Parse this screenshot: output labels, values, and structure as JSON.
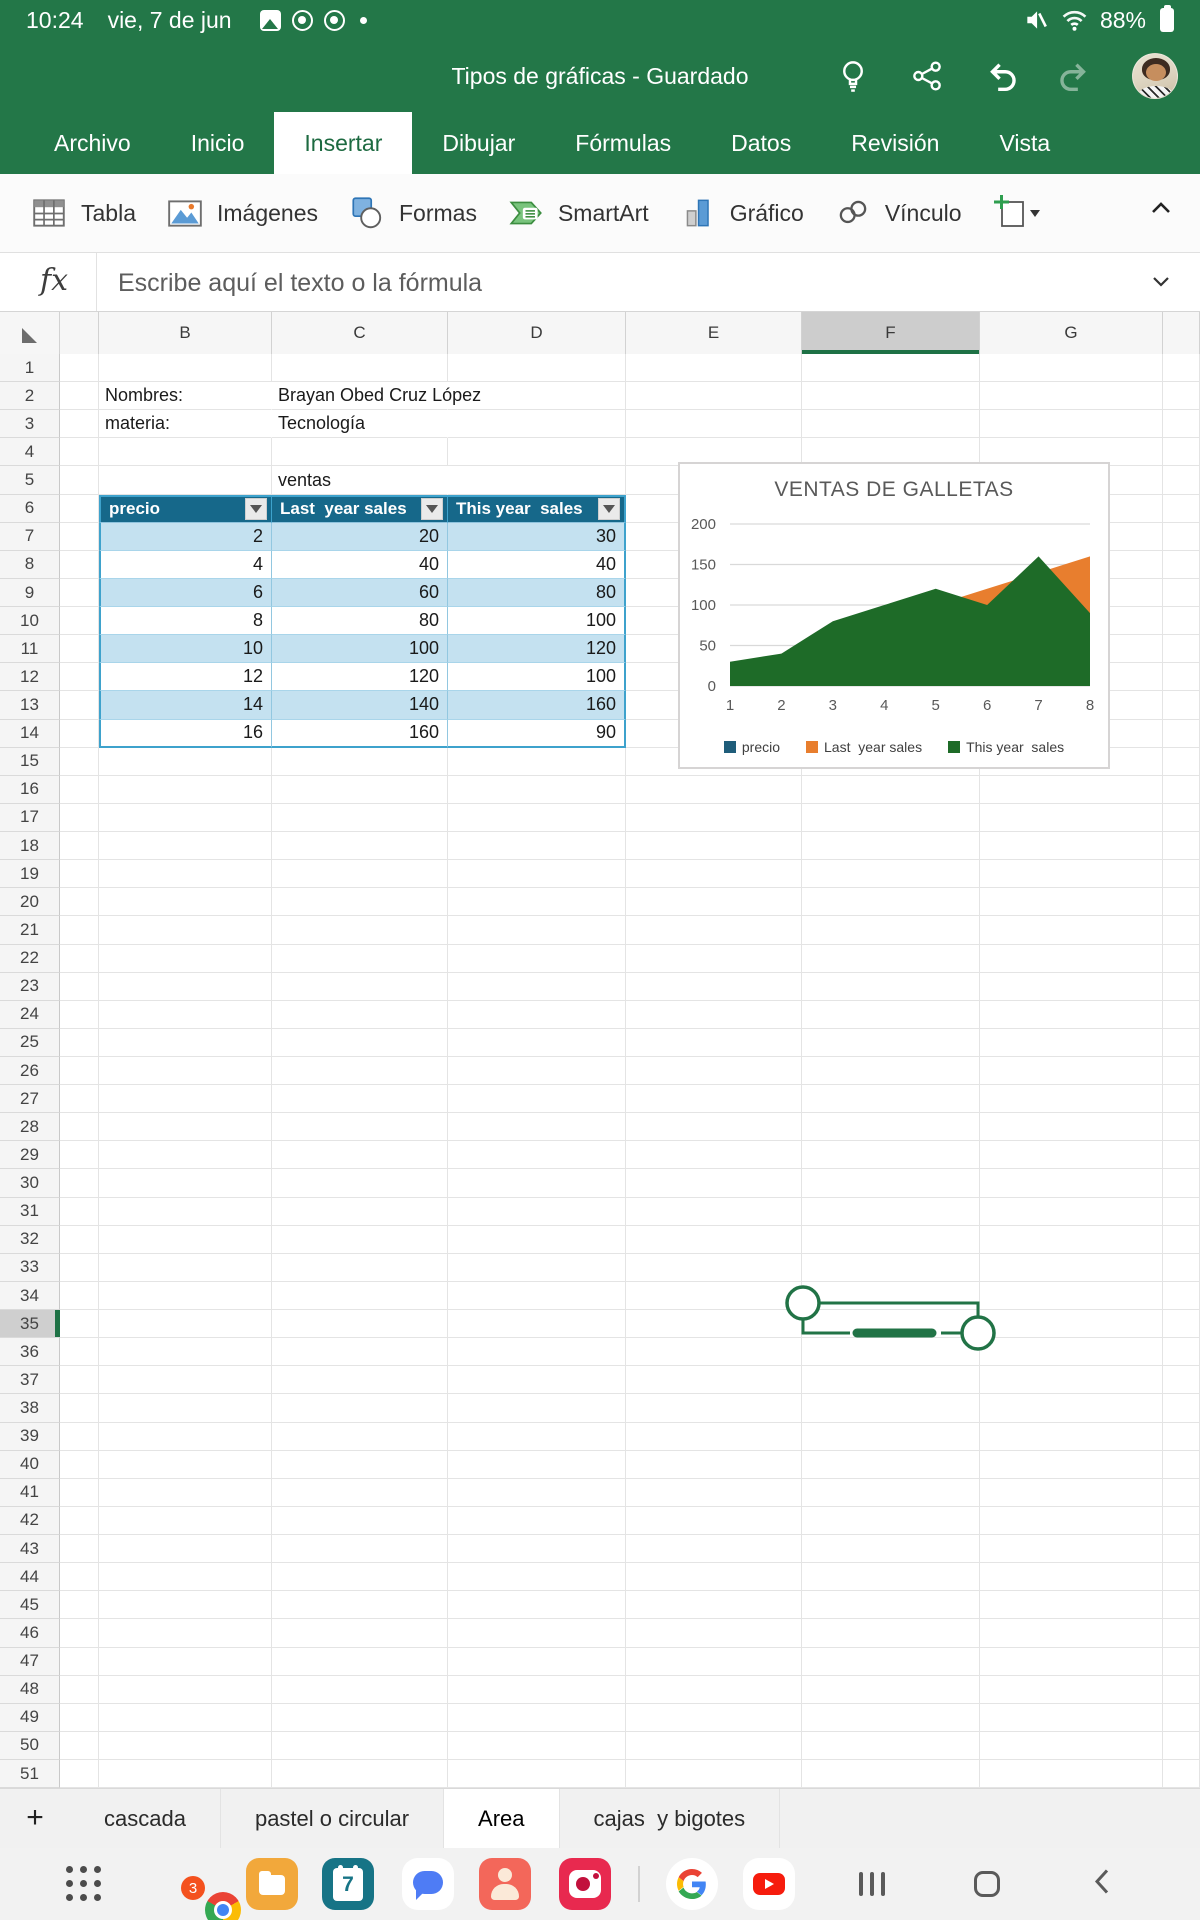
{
  "status_bar": {
    "time": "10:24",
    "date": "vie, 7 de jun",
    "battery_percent": "88%",
    "icons": [
      "photos-notification-icon",
      "chrome-notification-icon",
      "chrome-notification-icon",
      "overflow-dot",
      "mute-icon",
      "wifi-icon",
      "battery-icon"
    ]
  },
  "title_bar": {
    "title": "Tipos de gráficas - Guardado",
    "icons": [
      "idea-bulb-icon",
      "share-icon",
      "undo-icon",
      "redo-icon",
      "account-avatar"
    ]
  },
  "ribbon": {
    "tabs": [
      "Archivo",
      "Inicio",
      "Insertar",
      "Dibujar",
      "Fórmulas",
      "Datos",
      "Revisión",
      "Vista"
    ],
    "active_tab": "Insertar"
  },
  "toolbar": {
    "items": [
      {
        "label": "Tabla",
        "icon": "table-icon"
      },
      {
        "label": "Imágenes",
        "icon": "images-icon"
      },
      {
        "label": "Formas",
        "icon": "shapes-icon"
      },
      {
        "label": "SmartArt",
        "icon": "smartart-icon"
      },
      {
        "label": "Gráfico",
        "icon": "chart-icon"
      },
      {
        "label": "Vínculo",
        "icon": "link-icon"
      }
    ],
    "insert_object_icon": "insert-placeholder-icon",
    "collapse_icon": "collapse-ribbon-chevron"
  },
  "formula_bar": {
    "fx_glyph": "fx",
    "placeholder": "Escribe aquí el texto o la fórmula"
  },
  "grid": {
    "visible_columns": [
      "B",
      "C",
      "D",
      "E",
      "F",
      "G"
    ],
    "selected_column": "F",
    "selected_row": 35,
    "row_count": 51,
    "cells": {
      "B2": "Nombres:",
      "C2": "Brayan Obed Cruz López",
      "B3": "materia:",
      "C3": "Tecnología",
      "C5": "ventas"
    }
  },
  "sheet_table": {
    "header_row": 6,
    "columns": [
      "B",
      "C",
      "D"
    ],
    "headers": [
      "precio",
      "Last  year sales",
      "This year  sales"
    ],
    "rows": [
      [
        2,
        20,
        30
      ],
      [
        4,
        40,
        40
      ],
      [
        6,
        60,
        80
      ],
      [
        8,
        80,
        100
      ],
      [
        10,
        100,
        120
      ],
      [
        12,
        120,
        100
      ],
      [
        14,
        140,
        160
      ],
      [
        16,
        160,
        90
      ]
    ]
  },
  "chart_data": {
    "type": "area",
    "title": "VENTAS DE GALLETAS",
    "x": [
      1,
      2,
      3,
      4,
      5,
      6,
      7,
      8
    ],
    "series": [
      {
        "name": "precio",
        "values": [
          2,
          4,
          6,
          8,
          10,
          12,
          14,
          16
        ],
        "color": "#1F5D7A"
      },
      {
        "name": "Last  year sales",
        "values": [
          20,
          40,
          60,
          80,
          100,
          120,
          140,
          160
        ],
        "color": "#E87E2E"
      },
      {
        "name": "This year  sales",
        "values": [
          30,
          40,
          80,
          100,
          120,
          100,
          160,
          90
        ],
        "color": "#1E6B28"
      }
    ],
    "ylim": [
      0,
      200
    ],
    "yticks": [
      0,
      50,
      100,
      150,
      200
    ],
    "grid_on": true,
    "legend_position": "bottom"
  },
  "sheet_tabs": {
    "add_label": "+",
    "tabs": [
      "cascada",
      "pastel o circular",
      "Area",
      "cajas  y bigotes"
    ],
    "active": "Area"
  },
  "dock": {
    "apps": [
      {
        "name": "app-grid"
      },
      {
        "name": "chrome",
        "badge": "3"
      },
      {
        "name": "my-files"
      },
      {
        "name": "calendar",
        "day": "7"
      },
      {
        "name": "messages"
      },
      {
        "name": "contacts"
      },
      {
        "name": "camera"
      },
      {
        "name": "divider"
      },
      {
        "name": "google"
      },
      {
        "name": "youtube"
      }
    ],
    "nav": [
      {
        "name": "recents"
      },
      {
        "name": "home"
      },
      {
        "name": "back"
      }
    ]
  }
}
